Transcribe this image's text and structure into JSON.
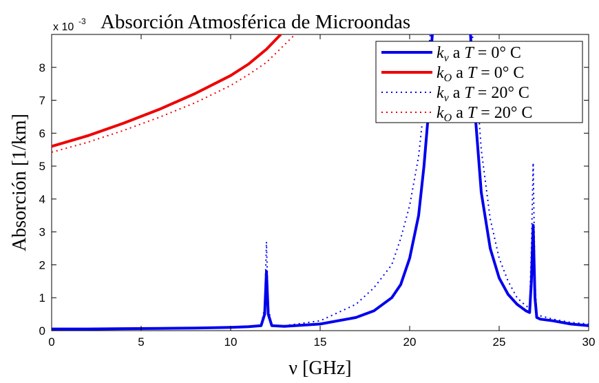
{
  "chart_data": {
    "type": "line",
    "title": "Absorción Atmosférica de Microondas",
    "xlabel": "ν [GHz]",
    "ylabel": "Absorción [1/km]",
    "y_exponent_label": "x 10",
    "y_exponent_power": "-3",
    "xlim": [
      0,
      30
    ],
    "ylim": [
      0,
      9
    ],
    "x_ticks": [
      0,
      5,
      10,
      15,
      20,
      25,
      30
    ],
    "x_tick_labels": [
      "0",
      "5",
      "10",
      "15",
      "20",
      "25",
      "30"
    ],
    "y_ticks": [
      0,
      1,
      2,
      3,
      4,
      5,
      6,
      7,
      8
    ],
    "y_tick_labels": [
      "0",
      "1",
      "2",
      "3",
      "4",
      "5",
      "6",
      "7",
      "8"
    ],
    "grid": false,
    "legend_position": "top-right",
    "legend_color_mode": "series",
    "series": [
      {
        "name": "k_v a T = 0° C",
        "legend_symbol": "k",
        "legend_sub": "v",
        "legend_text": " a ",
        "legend_var": "T",
        "legend_rest": " = 0° C",
        "color": "#0000ee",
        "style": "solid",
        "x": [
          0,
          2,
          4,
          6,
          8,
          10,
          11,
          11.7,
          11.9,
          12.0,
          12.1,
          12.3,
          13,
          15,
          17,
          18,
          19,
          19.5,
          20,
          20.5,
          20.8,
          21.0,
          21.2,
          21.4,
          23.3,
          23.6,
          24,
          24.5,
          25,
          25.5,
          26,
          26.5,
          26.7,
          26.8,
          26.9,
          27.0,
          27.1,
          27.3,
          28,
          29,
          30
        ],
        "y": [
          0.05,
          0.05,
          0.06,
          0.07,
          0.08,
          0.1,
          0.12,
          0.15,
          0.5,
          1.8,
          0.5,
          0.15,
          0.13,
          0.2,
          0.4,
          0.6,
          1.0,
          1.4,
          2.2,
          3.5,
          5.0,
          6.3,
          8.5,
          10,
          10,
          7.0,
          4.2,
          2.5,
          1.6,
          1.1,
          0.8,
          0.6,
          0.55,
          1.5,
          3.2,
          1.0,
          0.4,
          0.35,
          0.3,
          0.2,
          0.15
        ]
      },
      {
        "name": "k_O a T = 0° C",
        "legend_symbol": "k",
        "legend_sub": "O",
        "legend_text": " a ",
        "legend_var": "T",
        "legend_rest": " = 0° C",
        "color": "#ee0000",
        "style": "solid",
        "x": [
          0,
          2,
          4,
          6,
          8,
          10,
          11,
          12,
          12.8
        ],
        "y": [
          5.6,
          5.92,
          6.3,
          6.72,
          7.2,
          7.75,
          8.1,
          8.55,
          9.0
        ]
      },
      {
        "name": "k_v a T = 20° C",
        "legend_symbol": "k",
        "legend_sub": "v",
        "legend_text": " a ",
        "legend_var": "T",
        "legend_rest": " = 20° C",
        "color": "#0000ee",
        "style": "dotted",
        "x": [
          0,
          2,
          4,
          6,
          8,
          10,
          11,
          11.7,
          11.9,
          12.0,
          12.1,
          12.3,
          13,
          15,
          17,
          18,
          19,
          19.5,
          20,
          20.5,
          20.8,
          21.0,
          21.3,
          23.3,
          23.6,
          24,
          24.5,
          25,
          25.5,
          26,
          26.5,
          26.7,
          26.8,
          26.9,
          27.0,
          27.1,
          27.3,
          28,
          29,
          30
        ],
        "y": [
          0.05,
          0.05,
          0.06,
          0.07,
          0.08,
          0.1,
          0.12,
          0.15,
          0.7,
          2.7,
          0.7,
          0.15,
          0.15,
          0.3,
          0.8,
          1.3,
          2.0,
          2.8,
          3.8,
          5.3,
          6.8,
          8.0,
          10,
          10,
          8.5,
          5.5,
          3.4,
          2.2,
          1.5,
          1.0,
          0.75,
          0.7,
          2.5,
          5.1,
          1.5,
          0.5,
          0.45,
          0.35,
          0.25,
          0.2
        ]
      },
      {
        "name": "k_O a T = 20° C",
        "legend_symbol": "k",
        "legend_sub": "O",
        "legend_text": " a ",
        "legend_var": "T",
        "legend_rest": " = 20° C",
        "color": "#ee0000",
        "style": "dotted",
        "x": [
          0,
          2,
          4,
          6,
          8,
          10,
          11,
          12,
          13.5
        ],
        "y": [
          5.42,
          5.72,
          6.08,
          6.48,
          6.92,
          7.45,
          7.78,
          8.15,
          8.95
        ]
      }
    ]
  }
}
